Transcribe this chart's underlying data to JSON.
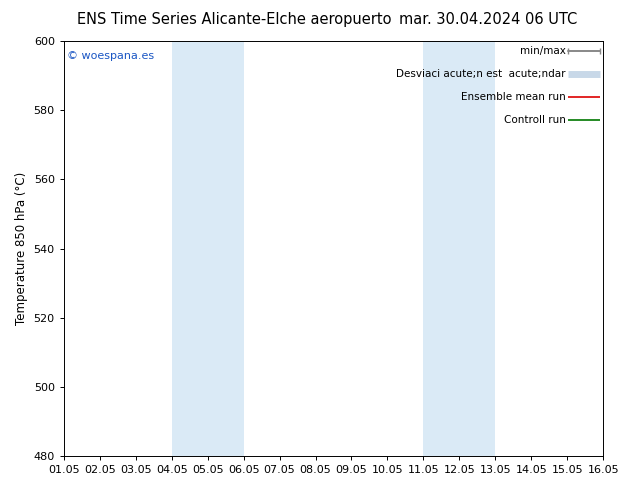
{
  "title_left": "ENS Time Series Alicante-Elche aeropuerto",
  "title_right": "mar. 30.04.2024 06 UTC",
  "ylabel": "Temperature 850 hPa (°C)",
  "ylim": [
    480,
    600
  ],
  "yticks": [
    480,
    500,
    520,
    540,
    560,
    580,
    600
  ],
  "xlim": [
    0,
    15
  ],
  "xtick_labels": [
    "01.05",
    "02.05",
    "03.05",
    "04.05",
    "05.05",
    "06.05",
    "07.05",
    "08.05",
    "09.05",
    "10.05",
    "11.05",
    "12.05",
    "13.05",
    "14.05",
    "15.05",
    "16.05"
  ],
  "shaded_regions": [
    {
      "xmin": 3,
      "xmax": 5,
      "color": "#daeaf6"
    },
    {
      "xmin": 10,
      "xmax": 12,
      "color": "#daeaf6"
    }
  ],
  "watermark": "© woespana.es",
  "watermark_color": "#1a56c4",
  "bg_color": "#ffffff",
  "plot_bg_color": "#ffffff",
  "title_fontsize": 10.5,
  "tick_fontsize": 8,
  "ylabel_fontsize": 8.5,
  "legend_label1": "min/max",
  "legend_label2": "Desviaci acute;n est  acute;ndar",
  "legend_label3": "Ensemble mean run",
  "legend_label4": "Controll run",
  "legend_color1": "#888888",
  "legend_color2": "#c8d8e8",
  "legend_color3": "#dd0000",
  "legend_color4": "#007700"
}
